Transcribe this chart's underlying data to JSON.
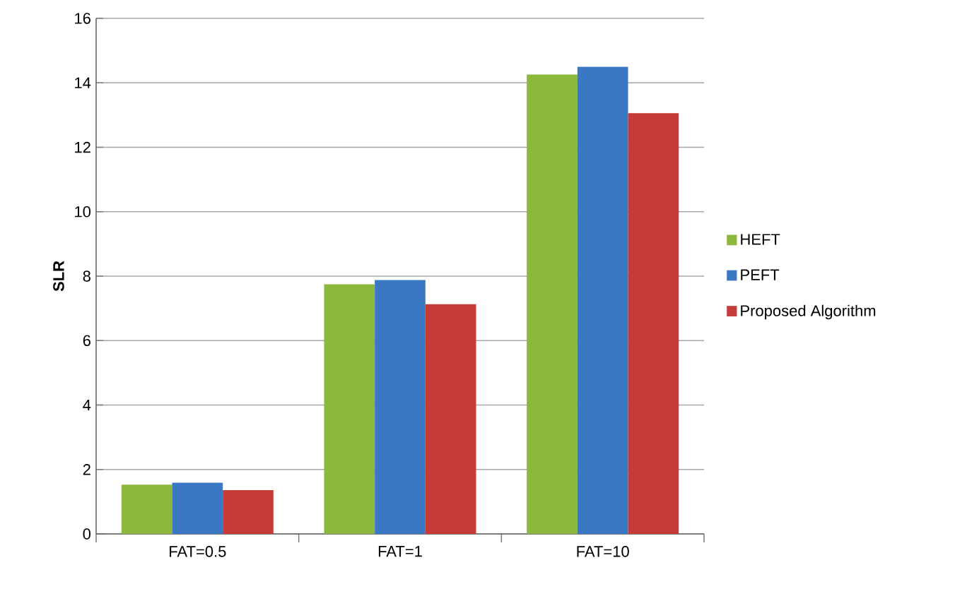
{
  "chart_data": {
    "type": "bar",
    "ylabel": "SLR",
    "categories": [
      "FAT=0.5",
      "FAT=1",
      "FAT=10"
    ],
    "series": [
      {
        "name": "HEFT",
        "color": "#8db83e",
        "values": [
          1.53,
          7.75,
          14.26
        ]
      },
      {
        "name": "PEFT",
        "color": "#3a78c4",
        "values": [
          1.59,
          7.88,
          14.5
        ]
      },
      {
        "name": "Proposed Algorithm",
        "color": "#c63a37",
        "values": [
          1.36,
          7.13,
          13.06
        ]
      }
    ],
    "ylim": [
      0,
      16
    ],
    "yticks": [
      0,
      2,
      4,
      6,
      8,
      10,
      12,
      14,
      16
    ],
    "grid": "y",
    "legend": "right"
  }
}
